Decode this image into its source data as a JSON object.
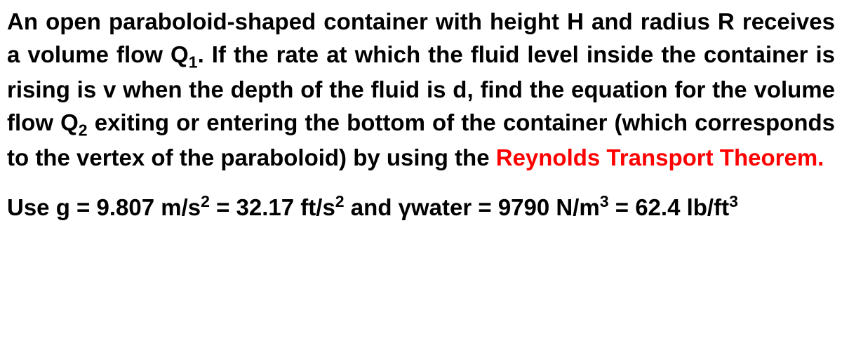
{
  "problem": {
    "part1": "An open paraboloid-shaped container with height H and radius R receives a volume flow Q",
    "sub1": "1",
    "part2": ". If the rate at which the fluid level inside the container is rising is v when the depth of the fluid is d, find the equation for the volume flow Q",
    "sub2": "2",
    "part3": " exiting or entering the bottom of the container (which corresponds to the vertex of the paraboloid) by using the ",
    "highlight": "Reynolds Transport Theorem."
  },
  "constants": {
    "part1": "Use g = 9.807 m/s",
    "sup1": "2",
    "part2": " = 32.17 ft/s",
    "sup2": "2",
    "part3": " and γwater = 9790 N/m",
    "sup3": "3",
    "part4": " = 62.4 lb/ft",
    "sup4": "3"
  },
  "colors": {
    "text": "#000000",
    "highlight": "#ff0000",
    "background": "#ffffff"
  },
  "typography": {
    "fontFamily": "Arial",
    "fontSize": 33,
    "fontWeight": "bold",
    "lineHeight": 1.42
  }
}
